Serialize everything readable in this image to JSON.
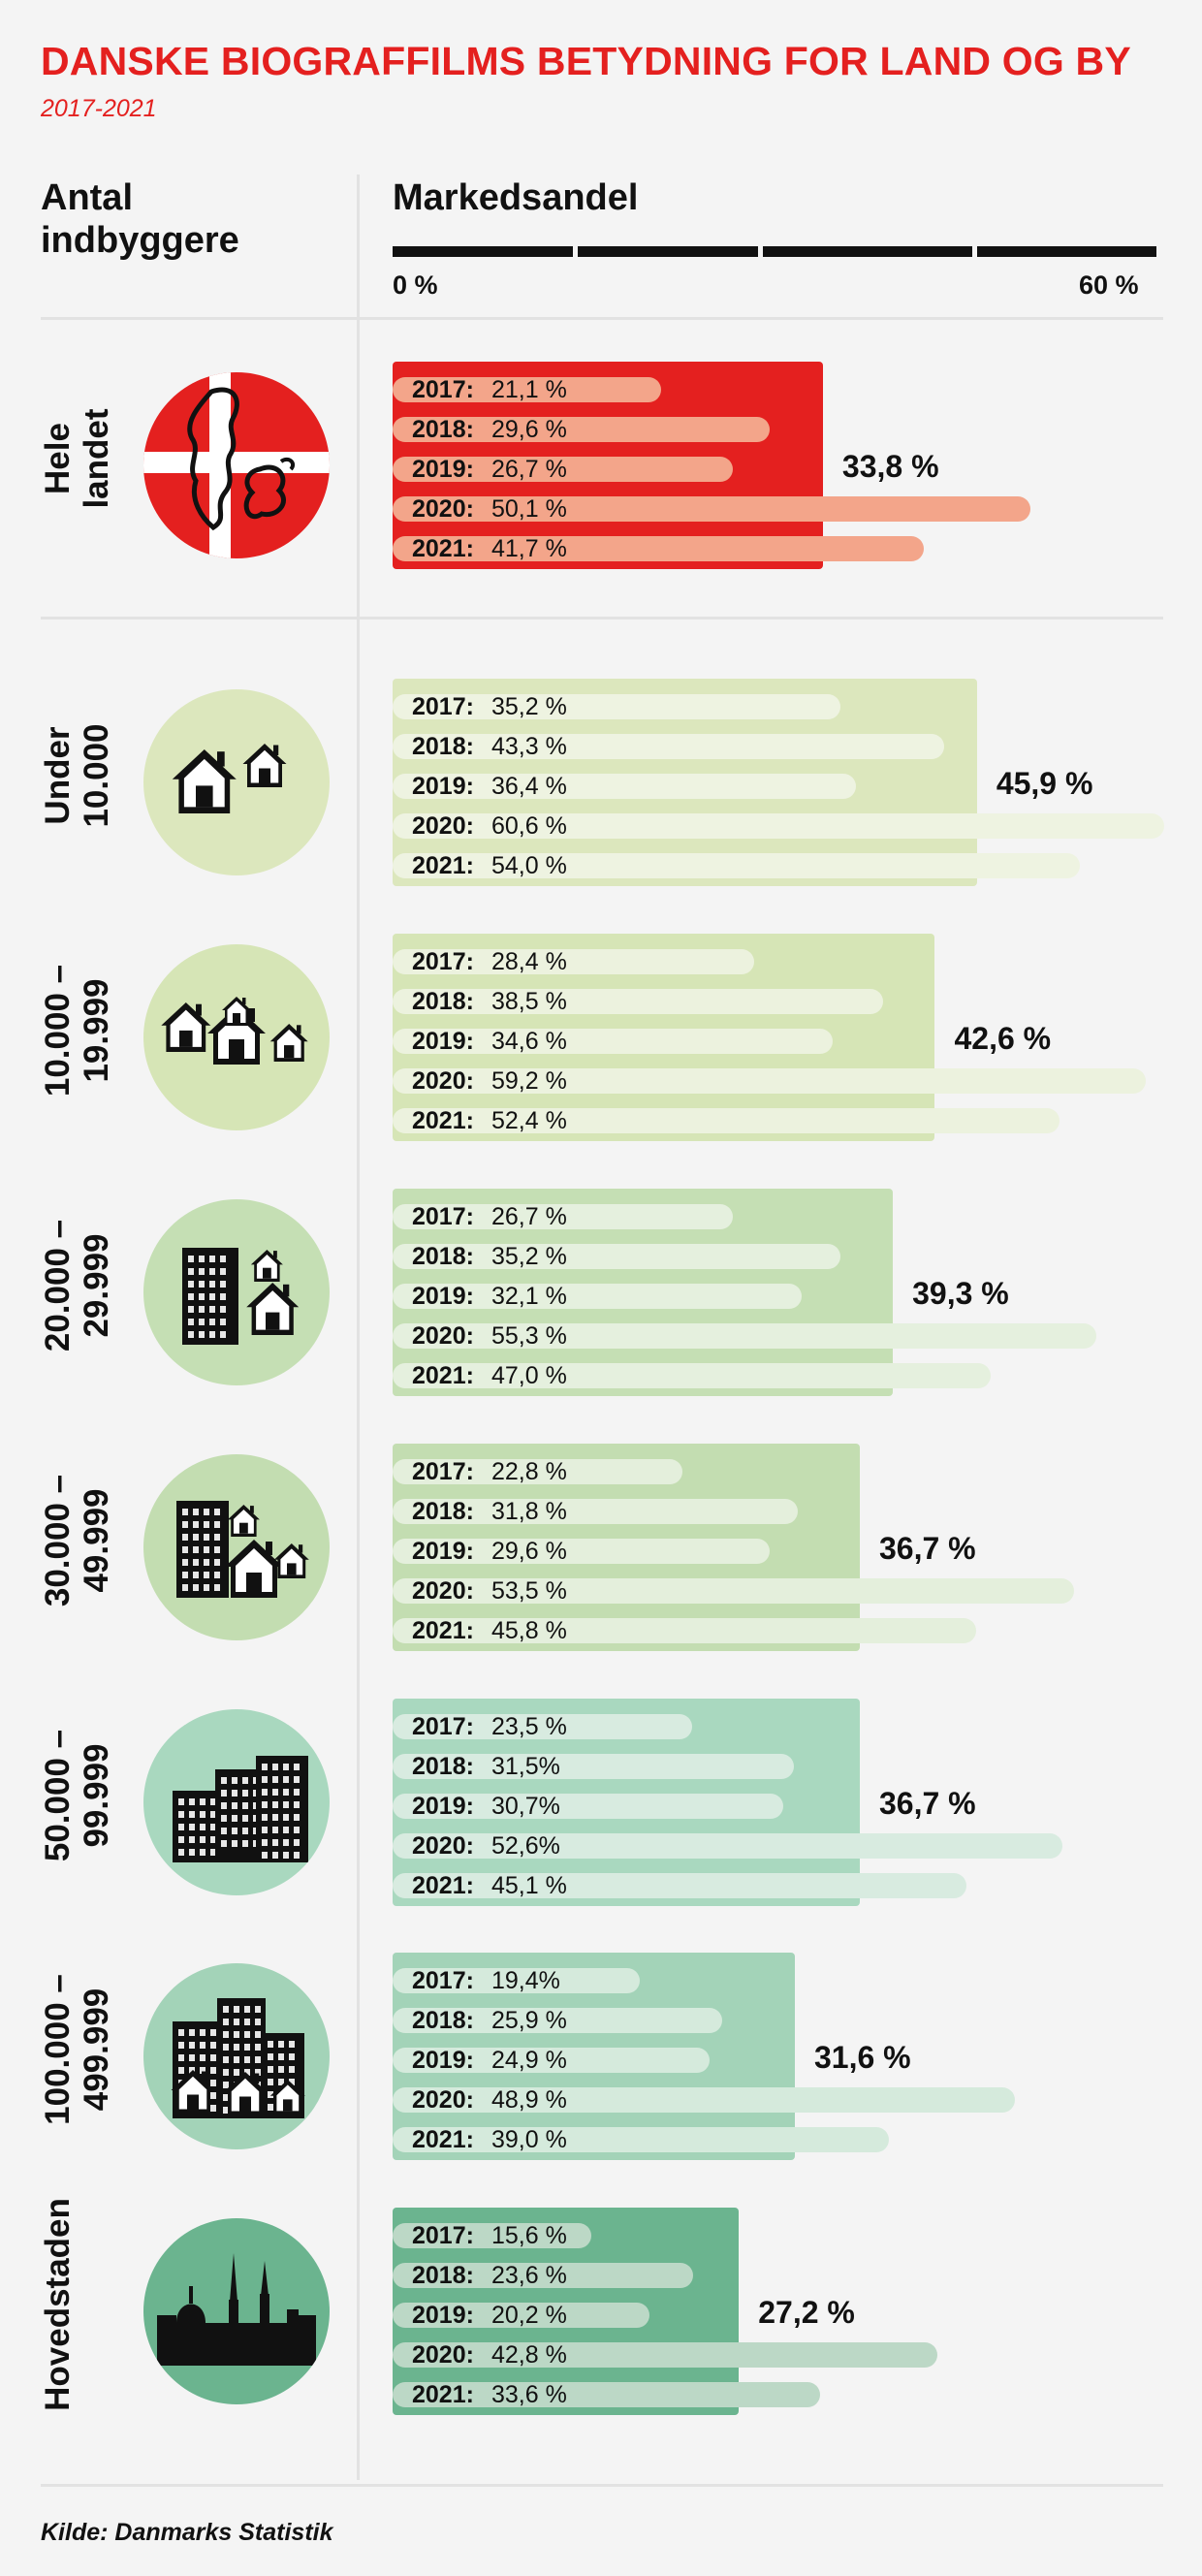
{
  "header": {
    "title": "DANSKE BIOGRAFFILMS BETYDNING FOR LAND OG BY",
    "subtitle": "2017-2021"
  },
  "columns": {
    "left_line1": "Antal",
    "left_line2": "indbyggere",
    "right": "Markedsandel"
  },
  "axis": {
    "min_label": "0 %",
    "max_label": "60 %"
  },
  "source": "Kilde: Danmarks Statistik",
  "colors": {
    "title": "#e4201f",
    "national_bar": "#e4201f",
    "national_year_bar": "#f3a58a"
  },
  "icons": [
    "denmark-flag-map-icon",
    "single-house-icon",
    "houses-icon",
    "apartment-house-icon",
    "apartments-houses-icon",
    "tall-buildings-icon",
    "city-icon",
    "copenhagen-skyline-icon"
  ],
  "chart_data": {
    "type": "bar",
    "x_range": [
      0,
      60
    ],
    "x_unit": "%",
    "years": [
      "2017:",
      "2018:",
      "2019:",
      "2020:",
      "2021:"
    ],
    "groups": [
      {
        "label_lines": [
          "Hele",
          "landet"
        ],
        "average": 33.8,
        "average_label": "33,8 %",
        "values": [
          21.1,
          29.6,
          26.7,
          50.1,
          41.7
        ],
        "value_labels": [
          "21,1 %",
          "29,6 %",
          "26,7 %",
          "50,1 %",
          "41,7 %"
        ],
        "color": "#e4201f",
        "year_color": "#f3a58a"
      },
      {
        "label_lines": [
          "Under",
          "10.000"
        ],
        "average": 45.9,
        "average_label": "45,9 %",
        "values": [
          35.2,
          43.3,
          36.4,
          60.6,
          54.0
        ],
        "value_labels": [
          "35,2 %",
          "43,3 %",
          "36,4 %",
          "60,6 %",
          "54,0 %"
        ],
        "color": "#dce7bd",
        "year_color": "#eef3e1"
      },
      {
        "label_lines": [
          "10.000 –",
          "19.999"
        ],
        "average": 42.6,
        "average_label": "42,6 %",
        "values": [
          28.4,
          38.5,
          34.6,
          59.2,
          52.4
        ],
        "value_labels": [
          "28,4 %",
          "38,5 %",
          "34,6 %",
          "59,2 %",
          "52,4 %"
        ],
        "color": "#d6e5b6",
        "year_color": "#ecf2de"
      },
      {
        "label_lines": [
          "20.000 –",
          "29.999"
        ],
        "average": 39.3,
        "average_label": "39,3 %",
        "values": [
          26.7,
          35.2,
          32.1,
          55.3,
          47.0
        ],
        "value_labels": [
          "26,7 %",
          "35,2 %",
          "32,1 %",
          "55,3 %",
          "47,0 %"
        ],
        "color": "#c5dfb4",
        "year_color": "#e5f0de"
      },
      {
        "label_lines": [
          "30.000 –",
          "49.999"
        ],
        "average": 36.7,
        "average_label": "36,7 %",
        "values": [
          22.8,
          31.8,
          29.6,
          53.5,
          45.8
        ],
        "value_labels": [
          "22,8 %",
          "31,8 %",
          "29,6 %",
          "53,5 %",
          "45,8 %"
        ],
        "color": "#c3ddb1",
        "year_color": "#e4efdc"
      },
      {
        "label_lines": [
          "50.000 –",
          "99.999"
        ],
        "average": 36.7,
        "average_label": "36,7 %",
        "values": [
          23.5,
          31.5,
          30.7,
          52.6,
          45.1
        ],
        "value_labels": [
          "23,5 %",
          "31,5%",
          "30,7%",
          "52,6%",
          "45,1 %"
        ],
        "color": "#a9d8bf",
        "year_color": "#d8ebe0"
      },
      {
        "label_lines": [
          "100.000 –",
          "499.999"
        ],
        "average": 31.6,
        "average_label": "31,6 %",
        "values": [
          19.4,
          25.9,
          24.9,
          48.9,
          39.0
        ],
        "value_labels": [
          "19,4%",
          "25,9 %",
          "24,9 %",
          "48,9 %",
          "39,0 %"
        ],
        "color": "#a3d3b8",
        "year_color": "#d5eadc"
      },
      {
        "label_lines": [
          "Hovedstaden"
        ],
        "average": 27.2,
        "average_label": "27,2 %",
        "values": [
          15.6,
          23.6,
          20.2,
          42.8,
          33.6
        ],
        "value_labels": [
          "15,6 %",
          "23,6 %",
          "20,2 %",
          "42,8 %",
          "33,6 %"
        ],
        "color": "#6bb48f",
        "year_color": "#bcd8c6"
      }
    ]
  }
}
